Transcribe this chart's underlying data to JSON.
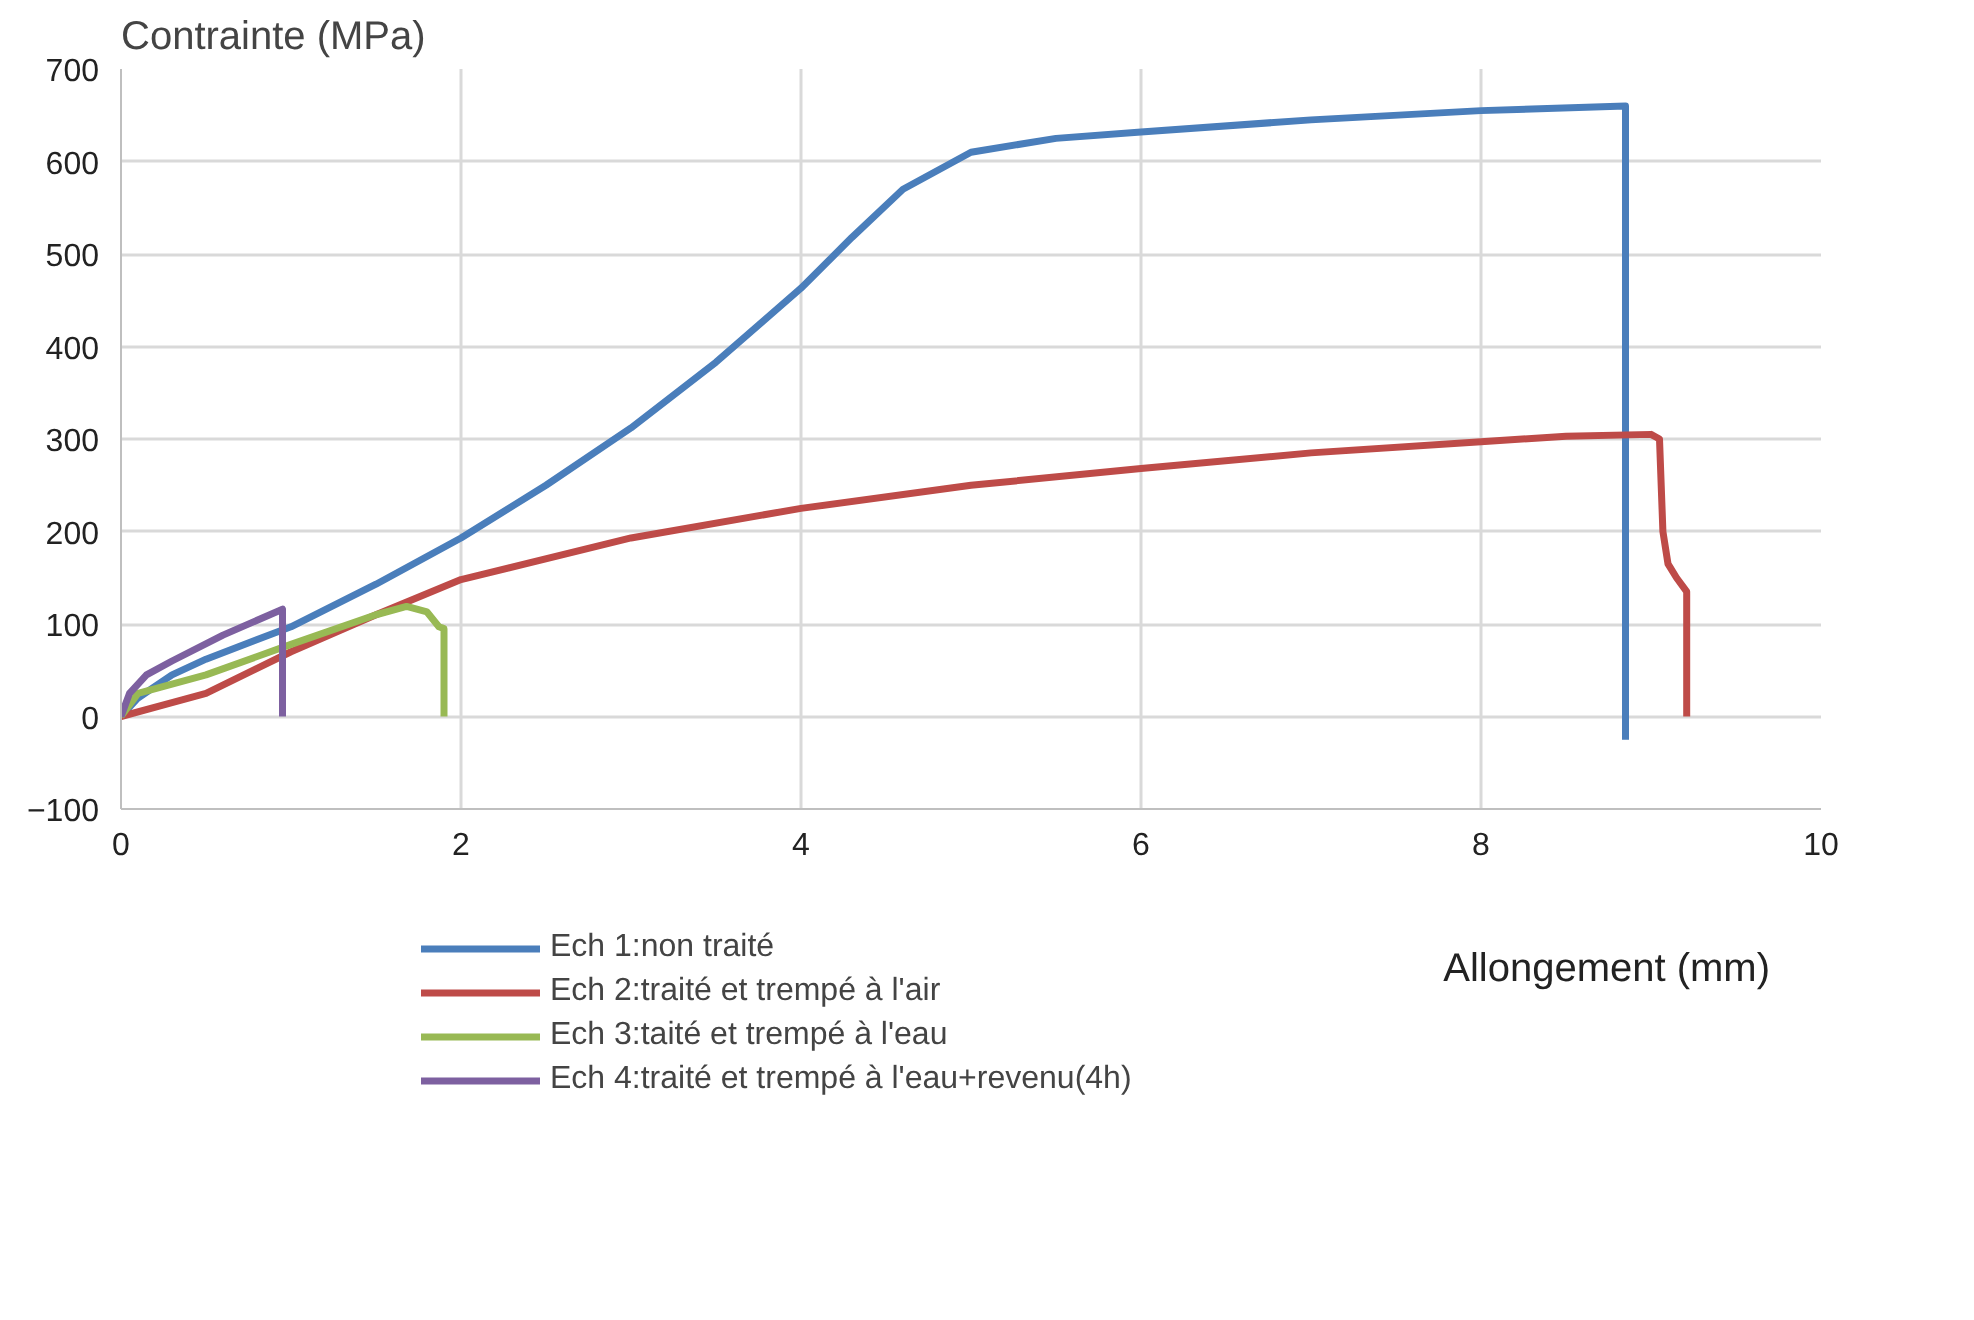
{
  "chart_data": {
    "type": "line",
    "xlabel": "Allongement (mm)",
    "ylabel": "Contrainte (MPa)",
    "xlim": [
      0,
      10
    ],
    "xticks": [
      0,
      2,
      4,
      6,
      8,
      10
    ],
    "ylim": [
      -100,
      700
    ],
    "yticks": [
      -100,
      0,
      100,
      200,
      300,
      400,
      500,
      600,
      700
    ],
    "grid": true,
    "legend": "bottom",
    "marker": "none",
    "line_style": "solid",
    "series": [
      {
        "name": "Ech 1:non traité",
        "color": "#4a7ebb",
        "x": [
          0,
          0.1,
          0.3,
          0.5,
          1,
          1.5,
          2,
          2.5,
          3,
          3.5,
          4,
          4.3,
          4.6,
          5,
          5.5,
          6,
          7,
          8,
          8.85,
          8.85
        ],
        "values": [
          0,
          20,
          45,
          62,
          97,
          143,
          193,
          250,
          312,
          383,
          463,
          518,
          570,
          610,
          625,
          632,
          645,
          655,
          660,
          -25
        ]
      },
      {
        "name": "Ech 2:traité et trempé à l'air",
        "color": "#be4b48",
        "x": [
          0,
          0.3,
          0.5,
          1,
          1.5,
          2,
          3,
          4,
          5,
          6,
          7,
          8,
          8.5,
          9,
          9.05,
          9.07,
          9.1,
          9.15,
          9.21,
          9.21
        ],
        "values": [
          0,
          15,
          25,
          70,
          110,
          148,
          193,
          225,
          250,
          268,
          285,
          297,
          303,
          305,
          300,
          200,
          165,
          150,
          135,
          0
        ]
      },
      {
        "name": "Ech 3:taité et trempé à l'eau",
        "color": "#98b954",
        "x": [
          0,
          0.1,
          0.5,
          1,
          1.5,
          1.68,
          1.8,
          1.87,
          1.9,
          1.9
        ],
        "values": [
          0,
          25,
          45,
          78,
          110,
          119,
          113,
          97,
          95,
          0
        ]
      },
      {
        "name": "Ech 4:traité et trempé à l'eau+revenu(4h)",
        "color": "#7d60a0",
        "x": [
          0,
          0.05,
          0.15,
          0.3,
          0.6,
          0.95,
          0.95
        ],
        "values": [
          0,
          25,
          45,
          60,
          88,
          116,
          0
        ]
      }
    ]
  }
}
